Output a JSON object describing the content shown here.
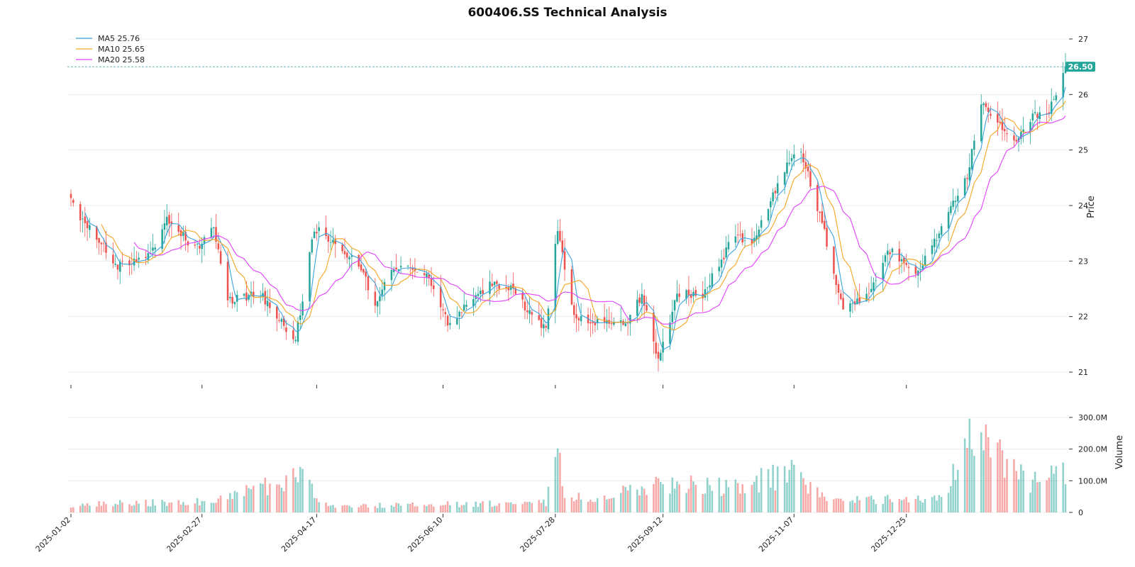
{
  "chart_data": {
    "type": "candlestick",
    "title": "600406.SS Technical Analysis",
    "price_panel": {
      "ylabel": "Price",
      "ylim": [
        21,
        27
      ],
      "yticks": [
        "21",
        "22",
        "23",
        "24",
        "25",
        "26",
        "27"
      ],
      "grid": true,
      "last_price_label": "26.50",
      "last_price": 26.5,
      "up_color": "#26a69a",
      "down_color": "#ef5350",
      "legend": {
        "placement": "top-left",
        "items": [
          {
            "label": "MA5 25.76",
            "color": "#3aa3e0"
          },
          {
            "label": "MA10 25.65",
            "color": "#f5a623"
          },
          {
            "label": "MA20 25.58",
            "color": "#e040fb"
          }
        ]
      },
      "close_keypoints": [
        [
          "2025-01-02",
          24.2
        ],
        [
          "2025-01-06",
          23.8
        ],
        [
          "2025-01-14",
          23.4
        ],
        [
          "2025-01-20",
          22.9
        ],
        [
          "2025-02-05",
          23.1
        ],
        [
          "2025-02-12",
          23.8
        ],
        [
          "2025-02-24",
          23.2
        ],
        [
          "2025-03-04",
          23.6
        ],
        [
          "2025-03-10",
          22.3
        ],
        [
          "2025-03-24",
          22.4
        ],
        [
          "2025-04-02",
          21.9
        ],
        [
          "2025-04-08",
          21.6
        ],
        [
          "2025-04-16",
          23.6
        ],
        [
          "2025-04-22",
          23.4
        ],
        [
          "2025-05-06",
          22.9
        ],
        [
          "2025-05-12",
          22.2
        ],
        [
          "2025-05-20",
          22.9
        ],
        [
          "2025-06-03",
          22.8
        ],
        [
          "2025-06-12",
          21.9
        ],
        [
          "2025-06-18",
          22.1
        ],
        [
          "2025-06-30",
          22.6
        ],
        [
          "2025-07-10",
          22.5
        ],
        [
          "2025-07-18",
          22.0
        ],
        [
          "2025-07-24",
          21.8
        ],
        [
          "2025-07-29",
          23.6
        ],
        [
          "2025-08-05",
          22.0
        ],
        [
          "2025-08-14",
          21.9
        ],
        [
          "2025-08-28",
          21.9
        ],
        [
          "2025-09-03",
          22.4
        ],
        [
          "2025-09-10",
          21.2
        ],
        [
          "2025-09-18",
          22.4
        ],
        [
          "2025-09-29",
          22.4
        ],
        [
          "2025-10-13",
          23.5
        ],
        [
          "2025-10-20",
          23.3
        ],
        [
          "2025-10-31",
          24.4
        ],
        [
          "2025-11-06",
          24.9
        ],
        [
          "2025-11-10",
          25.0
        ],
        [
          "2025-11-20",
          23.5
        ],
        [
          "2025-11-28",
          22.1
        ],
        [
          "2025-12-08",
          22.4
        ],
        [
          "2025-12-18",
          23.2
        ],
        [
          "2025-12-30",
          22.8
        ],
        [
          "2026-01-09",
          23.6
        ],
        [
          "2026-01-20",
          24.5
        ],
        [
          "2026-01-26",
          25.9
        ],
        [
          "2026-01-30",
          25.6
        ],
        [
          "2026-02-10",
          25.2
        ],
        [
          "2026-02-17",
          25.6
        ],
        [
          "2026-02-24",
          25.7
        ],
        [
          "2026-03-03",
          26.5
        ]
      ]
    },
    "volume_panel": {
      "ylabel": "Volume",
      "ylim": [
        0,
        320000000
      ],
      "yticks": [
        "0",
        "100.0M",
        "200.0M",
        "300.0M"
      ],
      "volume_keypoints": [
        [
          "2025-01-02",
          25000000
        ],
        [
          "2025-03-04",
          35000000
        ],
        [
          "2025-04-10",
          110000000
        ],
        [
          "2025-04-22",
          20000000
        ],
        [
          "2025-07-24",
          30000000
        ],
        [
          "2025-07-28",
          210000000
        ],
        [
          "2025-08-01",
          60000000
        ],
        [
          "2025-08-14",
          30000000
        ],
        [
          "2025-09-05",
          90000000
        ],
        [
          "2025-10-13",
          80000000
        ],
        [
          "2025-11-06",
          130000000
        ],
        [
          "2025-11-20",
          40000000
        ],
        [
          "2025-12-18",
          40000000
        ],
        [
          "2026-01-09",
          40000000
        ],
        [
          "2026-01-26",
          330000000
        ],
        [
          "2026-02-05",
          140000000
        ],
        [
          "2026-02-17",
          90000000
        ],
        [
          "2026-03-03",
          130000000
        ]
      ]
    },
    "x_axis": {
      "start": "2025-01-02",
      "end": "2026-03-03",
      "tick_labels": [
        "2025-01-02",
        "2025-02-27",
        "2025-04-17",
        "2025-06-10",
        "2025-07-28",
        "2025-09-12",
        "2025-11-07",
        "2025-12-25"
      ]
    }
  }
}
